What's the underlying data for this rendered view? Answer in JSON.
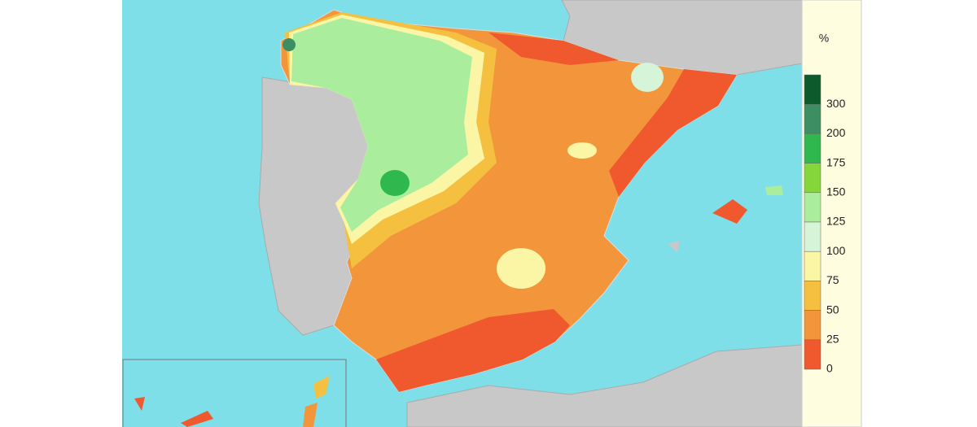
{
  "legend": {
    "title": "%",
    "labels": [
      300,
      200,
      175,
      150,
      125,
      100,
      75,
      50,
      25,
      0
    ],
    "colors": [
      "#0d5a2c",
      "#3d8e62",
      "#2eb84e",
      "#84d63a",
      "#a9ed9d",
      "#d6f4d8",
      "#fbf6a6",
      "#f5c040",
      "#f3953a",
      "#f0582e"
    ]
  }
}
